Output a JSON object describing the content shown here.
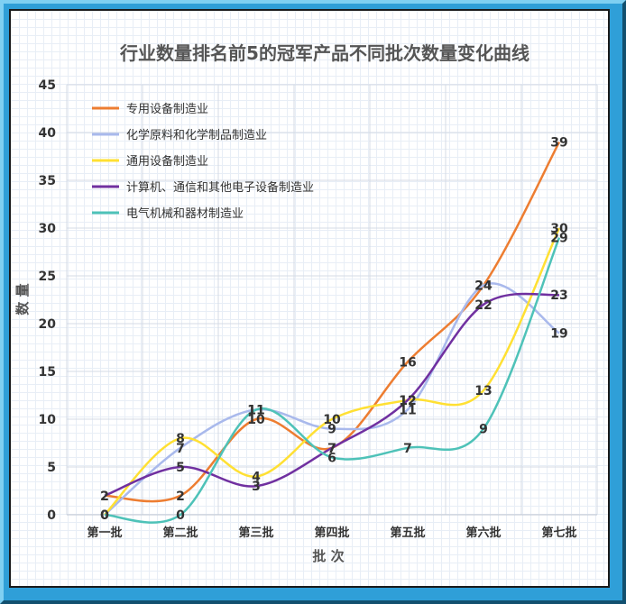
{
  "chart_data": {
    "type": "line",
    "title": "行业数量排名前5的冠军产品不同批次数量变化曲线",
    "xlabel": "批 次",
    "ylabel": "数 量",
    "ylim": [
      0,
      45
    ],
    "yticks": [
      0,
      5,
      10,
      15,
      20,
      25,
      30,
      35,
      40,
      45
    ],
    "categories": [
      "第一批",
      "第二批",
      "第三批",
      "第四批",
      "第五批",
      "第六批",
      "第七批"
    ],
    "grid": true,
    "legend_position": "top-left",
    "series": [
      {
        "name": "专用设备制造业",
        "color": "#ed7d31",
        "values": [
          2,
          2,
          10,
          7,
          16,
          24,
          39
        ]
      },
      {
        "name": "化学原料和化学制品制造业",
        "color": "#a9b9ec",
        "values": [
          0,
          7,
          11,
          9,
          11,
          24,
          19
        ]
      },
      {
        "name": "通用设备制造业",
        "color": "#ffe033",
        "values": [
          0,
          8,
          4,
          10,
          12,
          13,
          30
        ]
      },
      {
        "name": "计算机、通信和其他电子设备制造业",
        "color": "#7030a0",
        "values": [
          2,
          5,
          3,
          7,
          12,
          22,
          23
        ]
      },
      {
        "name": "电气机械和器材制造业",
        "color": "#4ec2b8",
        "values": [
          0,
          0,
          11,
          6,
          7,
          9,
          29
        ]
      }
    ]
  }
}
